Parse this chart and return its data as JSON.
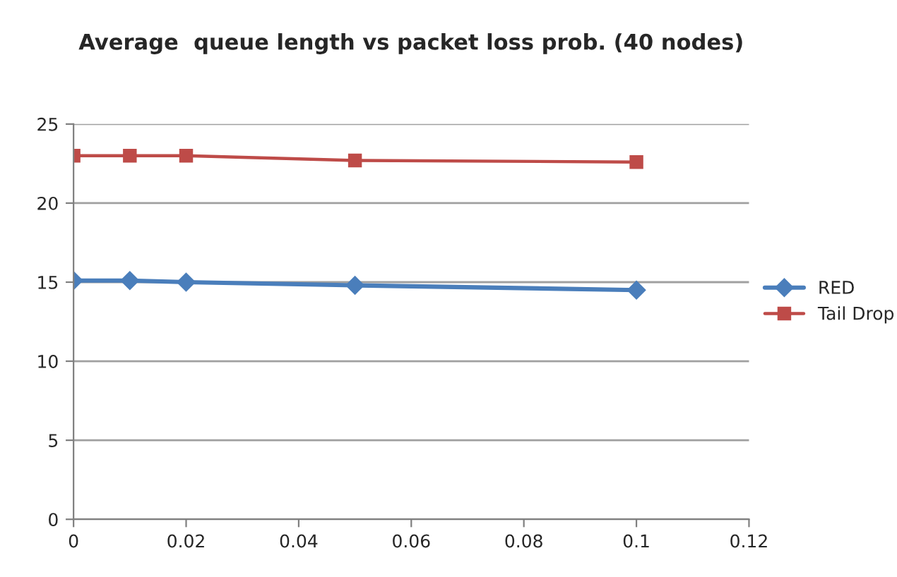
{
  "chart_data": {
    "type": "line",
    "title": "Average  queue length vs packet loss prob. (40 nodes)",
    "x": [
      0,
      0.01,
      0.02,
      0.05,
      0.1
    ],
    "series": [
      {
        "name": "RED",
        "color": "#4a7ebb",
        "marker": "diamond",
        "values": [
          15.1,
          15.1,
          15.0,
          14.8,
          14.5
        ]
      },
      {
        "name": "Tail Drop",
        "color": "#be4b48",
        "marker": "square",
        "values": [
          23.0,
          23.0,
          23.0,
          22.7,
          22.6
        ]
      }
    ],
    "xlim": [
      0,
      0.12
    ],
    "xticks": [
      0,
      0.02,
      0.04,
      0.06,
      0.08,
      0.1,
      0.12
    ],
    "ylim": [
      0,
      25
    ],
    "yticks": [
      0,
      5,
      10,
      15,
      20,
      25
    ],
    "grid": "y",
    "legend": "right",
    "line_style": "solid"
  }
}
